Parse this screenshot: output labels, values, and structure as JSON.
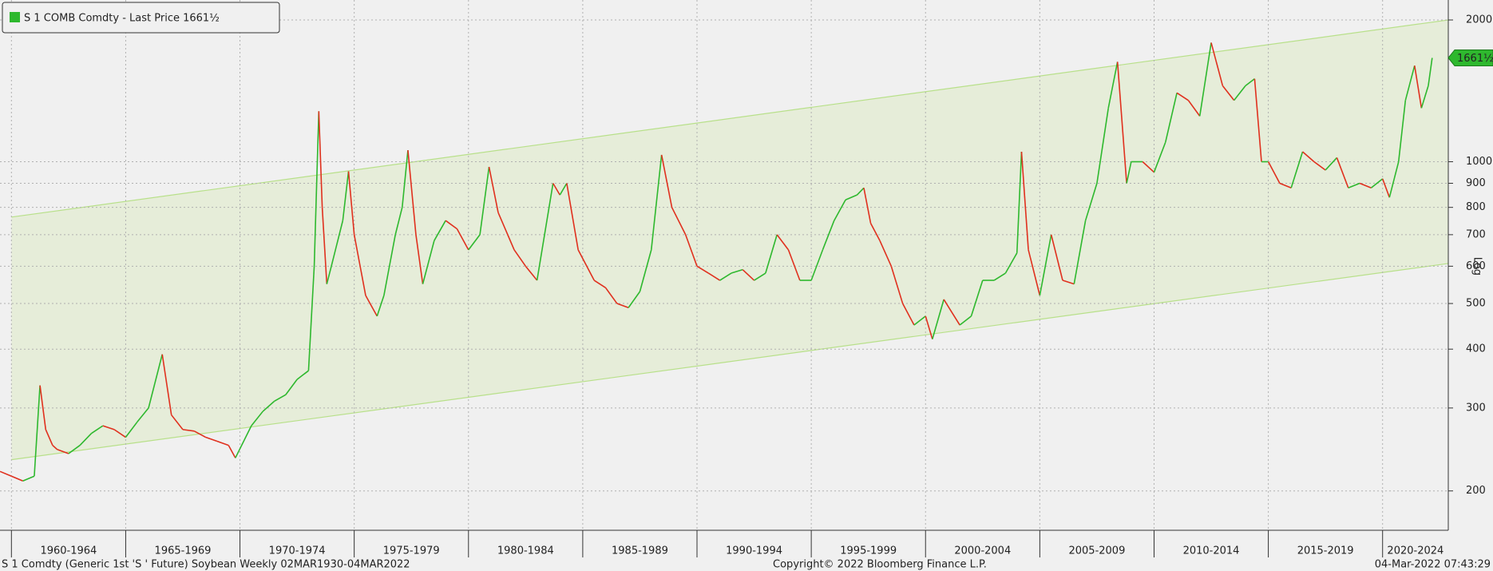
{
  "chart_data": {
    "type": "line",
    "log_scale": true,
    "grid": true,
    "legend_position": "top-left",
    "x": [
      1959.5,
      1960,
      1960.5,
      1961,
      1961.25,
      1961.5,
      1961.8,
      1962,
      1962.5,
      1963,
      1963.5,
      1964,
      1964.5,
      1965,
      1965.5,
      1966,
      1966.6,
      1967,
      1967.5,
      1968,
      1968.5,
      1969,
      1969.5,
      1969.8,
      1970.5,
      1971,
      1971.5,
      1972,
      1972.5,
      1973,
      1973.25,
      1973.45,
      1973.6,
      1973.8,
      1974,
      1974.5,
      1974.75,
      1975,
      1975.5,
      1976,
      1976.3,
      1976.8,
      1977.1,
      1977.35,
      1977.7,
      1978,
      1978.5,
      1979,
      1979.5,
      1980,
      1980.5,
      1980.9,
      1981.3,
      1982,
      1982.5,
      1983,
      1983.7,
      1984,
      1984.3,
      1984.8,
      1985.5,
      1986,
      1986.5,
      1987,
      1987.5,
      1988,
      1988.45,
      1988.9,
      1989.5,
      1990,
      1990.5,
      1991,
      1991.5,
      1992,
      1992.5,
      1993,
      1993.5,
      1994,
      1994.5,
      1995,
      1995.5,
      1996,
      1996.5,
      1997,
      1997.3,
      1997.6,
      1998,
      1998.5,
      1999,
      1999.5,
      2000,
      2000.3,
      2000.8,
      2001.5,
      2002,
      2002.5,
      2003,
      2003.5,
      2004,
      2004.2,
      2004.5,
      2005,
      2005.5,
      2006,
      2006.5,
      2007,
      2007.5,
      2008,
      2008.4,
      2008.8,
      2009,
      2009.5,
      2010,
      2010.5,
      2011,
      2011.5,
      2012,
      2012.5,
      2013,
      2013.5,
      2014,
      2014.4,
      2014.7,
      2015,
      2015.5,
      2016,
      2016.5,
      2017,
      2017.5,
      2018,
      2018.5,
      2019,
      2019.5,
      2020,
      2020.3,
      2020.7,
      2021,
      2021.4,
      2021.7,
      2022,
      2022.17
    ],
    "series": [
      {
        "name": "S 1 COMB Comdty - Last Price 1661½",
        "color": "#2eb82e",
        "down_color": "#e0301e",
        "values": [
          220,
          215,
          210,
          215,
          335,
          270,
          250,
          245,
          240,
          250,
          265,
          275,
          270,
          260,
          280,
          300,
          390,
          290,
          270,
          268,
          260,
          255,
          250,
          235,
          275,
          295,
          310,
          320,
          345,
          360,
          600,
          1280,
          800,
          550,
          600,
          750,
          954,
          700,
          520,
          470,
          520,
          700,
          800,
          1058,
          700,
          550,
          680,
          750,
          720,
          650,
          700,
          975,
          780,
          650,
          600,
          560,
          900,
          850,
          900,
          650,
          560,
          540,
          500,
          490,
          530,
          650,
          1034,
          800,
          700,
          600,
          580,
          560,
          580,
          590,
          560,
          580,
          700,
          650,
          560,
          560,
          650,
          750,
          830,
          850,
          880,
          740,
          680,
          600,
          500,
          450,
          470,
          420,
          510,
          450,
          470,
          560,
          560,
          580,
          640,
          1050,
          650,
          520,
          700,
          560,
          550,
          750,
          900,
          1300,
          1630,
          900,
          1000,
          1000,
          950,
          1100,
          1400,
          1350,
          1250,
          1790,
          1450,
          1350,
          1450,
          1500,
          1000,
          1000,
          900,
          880,
          1050,
          1000,
          960,
          1020,
          880,
          900,
          880,
          920,
          840,
          1000,
          1350,
          1600,
          1300,
          1450,
          1661.5
        ]
      }
    ],
    "last_label": {
      "value": 1661.5,
      "label": "1661½"
    },
    "xlim": [
      1959.5,
      2022.875
    ],
    "ylim": [
      165,
      2205
    ],
    "yticks": [
      200,
      300,
      400,
      500,
      600,
      700,
      800,
      900,
      1000,
      2000
    ],
    "xticks": [
      1960,
      1965,
      1970,
      1975,
      1980,
      1985,
      1990,
      1995,
      2000,
      2005,
      2010,
      2015,
      2020
    ],
    "period_labels": [
      "1960-1964",
      "1965-1969",
      "1970-1974",
      "1975-1979",
      "1980-1984",
      "1985-1989",
      "1990-1994",
      "1995-1999",
      "2000-2004",
      "2005-2009",
      "2010-2014",
      "2015-2019",
      "2020-2024"
    ],
    "channel": {
      "x": [
        1960,
        2022.875
      ],
      "upper": [
        763,
        2000
      ],
      "lower": [
        233,
        608
      ],
      "color": "#b8e08a",
      "fill": "#e6edd9"
    },
    "y_axis_label": "Log",
    "footer": {
      "left": "S 1 Comdty (Generic 1st 'S ' Future) Soybean  Weekly 02MAR1930-04MAR2022",
      "center": "Copyright© 2022 Bloomberg Finance L.P.",
      "right": "04-Mar-2022 07:43:29"
    }
  }
}
